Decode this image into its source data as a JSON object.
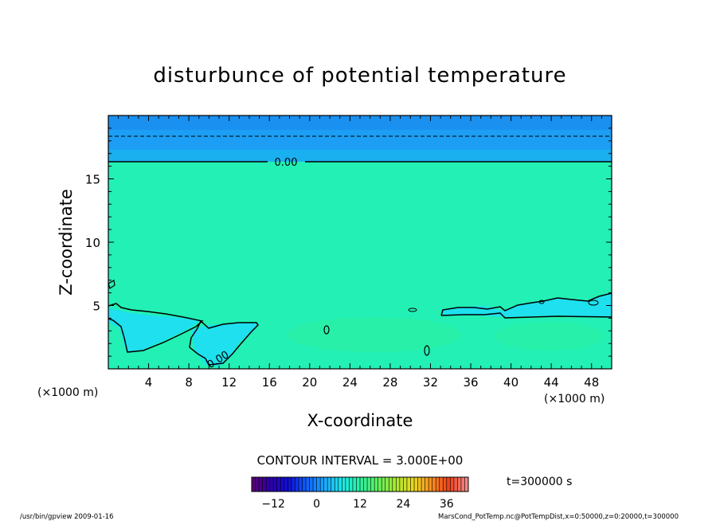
{
  "chart_data": {
    "type": "heatmap",
    "title": "disturbunce of potential temperature",
    "xlabel": "X-coordinate",
    "ylabel": "Z-coordinate",
    "x_unit": "(×1000 m)",
    "z_unit": "(×1000 m)",
    "xlim": [
      0,
      50
    ],
    "ylim": [
      0,
      20
    ],
    "x_ticks": [
      4,
      8,
      12,
      16,
      20,
      24,
      28,
      32,
      36,
      40,
      44,
      48
    ],
    "y_ticks": [
      5,
      10,
      15
    ],
    "contour_interval_text": "CONTOUR INTERVAL = 3.000E+00",
    "contour_labels": [
      "0.00",
      "0.00"
    ],
    "time_text": "t=300000 s",
    "colorbar": {
      "range": [
        -18,
        42
      ],
      "ticks": [
        -12,
        0,
        12,
        24,
        36
      ],
      "tick_labels": [
        "−12",
        "0",
        "12",
        "24",
        "36"
      ],
      "colors": [
        "#5a007a",
        "#2a00a8",
        "#1010d8",
        "#1060ff",
        "#18a8ff",
        "#1ee8e8",
        "#28f0a0",
        "#60f060",
        "#a8e830",
        "#e8d820",
        "#f89020",
        "#f04018",
        "#f08888"
      ]
    },
    "colors": {
      "background_field": "#22f0b4",
      "upper_band": "#1c9ef4",
      "upper_band_top": "#1a90f0",
      "cold_region": "#1ee0ee"
    },
    "footer_left": "/usr/bin/gpview   2009-01-16",
    "footer_right": "MarsCond_PotTemp.nc@PotTempDist,x=0:50000,z=0:20000,t=300000"
  }
}
